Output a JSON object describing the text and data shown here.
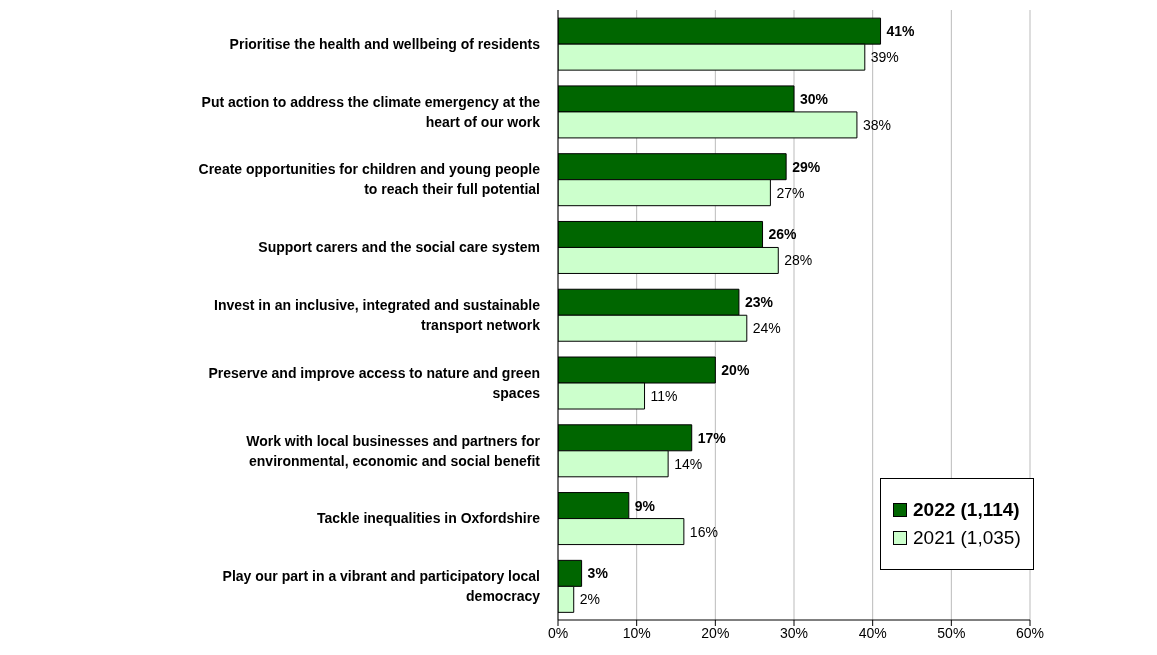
{
  "chart_data": {
    "type": "bar",
    "orientation": "horizontal",
    "categories": [
      "Prioritise the health and wellbeing of residents",
      "Put action to address the climate emergency at the heart of our work",
      "Create opportunities for children and young people to reach their full potential",
      "Support carers and the social care system",
      "Invest in an inclusive, integrated and sustainable transport network",
      "Preserve and improve access to nature and green spaces",
      "Work with local businesses and partners for environmental, economic and social benefit",
      "Tackle inequalities in Oxfordshire",
      "Play our part in a vibrant and participatory local democracy"
    ],
    "series": [
      {
        "name": "2022 (1,114)",
        "color": "#006600",
        "values": [
          41,
          30,
          29,
          26,
          23,
          20,
          17,
          9,
          3
        ],
        "value_labels": [
          "41%",
          "30%",
          "29%",
          "26%",
          "23%",
          "20%",
          "17%",
          "9%",
          "3%"
        ]
      },
      {
        "name": "2021 (1,035)",
        "color": "#ccffcc",
        "values": [
          39,
          38,
          27,
          28,
          24,
          11,
          14,
          16,
          2
        ],
        "value_labels": [
          "39%",
          "38%",
          "27%",
          "28%",
          "24%",
          "11%",
          "14%",
          "16%",
          "2%"
        ]
      }
    ],
    "xlim": [
      0,
      60
    ],
    "xticks": [
      {
        "value": 0,
        "label": "0%"
      },
      {
        "value": 10,
        "label": "10%"
      },
      {
        "value": 20,
        "label": "20%"
      },
      {
        "value": 30,
        "label": "30%"
      },
      {
        "value": 40,
        "label": "40%"
      },
      {
        "value": 50,
        "label": "50%"
      },
      {
        "value": 60,
        "label": "60%"
      }
    ],
    "grid": "x",
    "legend": "bottom right"
  }
}
